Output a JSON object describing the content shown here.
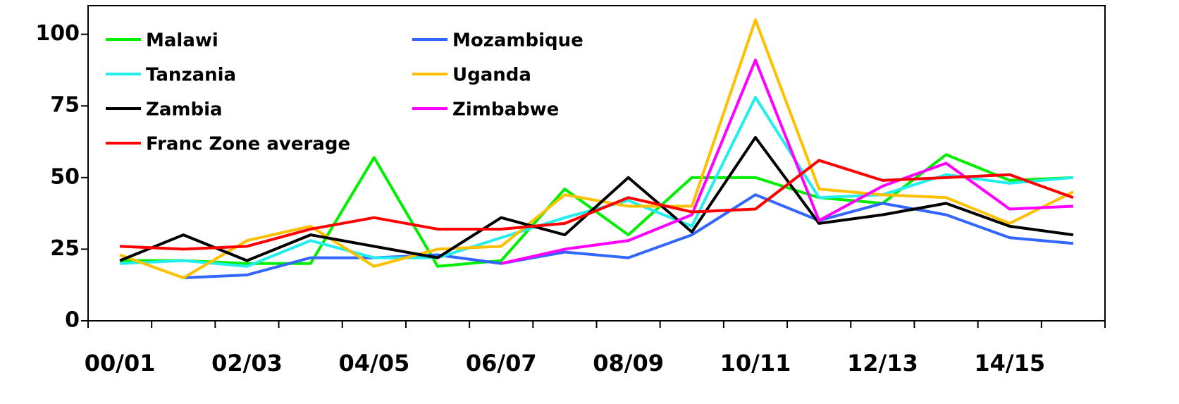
{
  "chart_data": {
    "type": "line",
    "categories": [
      "00/01",
      null,
      "02/03",
      null,
      "04/05",
      null,
      "06/07",
      null,
      "08/09",
      null,
      "10/11",
      null,
      "12/13",
      null,
      "14/15",
      null
    ],
    "series": [
      {
        "name": "Malawi",
        "color": "#00ee00",
        "values": [
          21,
          21,
          20,
          20,
          57,
          19,
          21,
          46,
          30,
          50,
          50,
          43,
          41,
          58,
          49,
          50
        ]
      },
      {
        "name": "Mozambique",
        "color": "#3366ff",
        "values": [
          null,
          15,
          16,
          22,
          22,
          23,
          20,
          24,
          22,
          30,
          44,
          35,
          41,
          37,
          29,
          27
        ]
      },
      {
        "name": "Tanzania",
        "color": "#22eeee",
        "values": [
          20,
          21,
          19,
          28,
          22,
          22,
          29,
          36,
          42,
          33,
          78,
          43,
          44,
          51,
          48,
          50
        ]
      },
      {
        "name": "Uganda",
        "color": "#ffc000",
        "values": [
          23,
          15,
          28,
          33,
          19,
          25,
          26,
          44,
          40,
          40,
          105,
          46,
          44,
          43,
          34,
          45
        ]
      },
      {
        "name": "Zambia",
        "color": "#000000",
        "values": [
          21,
          30,
          21,
          30,
          26,
          22,
          36,
          30,
          50,
          31,
          64,
          34,
          37,
          41,
          33,
          30
        ]
      },
      {
        "name": "Zimbabwe",
        "color": "#ff00ff",
        "values": [
          null,
          null,
          null,
          null,
          null,
          null,
          20,
          25,
          28,
          37,
          91,
          35,
          47,
          55,
          39,
          40
        ]
      },
      {
        "name": "Franc Zone average",
        "color": "#ff0000",
        "values": [
          26,
          25,
          26,
          32,
          36,
          32,
          32,
          34,
          43,
          38,
          39,
          56,
          49,
          50,
          51,
          43
        ]
      }
    ],
    "ylim": [
      0,
      110
    ],
    "yticks": [
      0,
      25,
      50,
      75,
      100
    ],
    "legend": "upper left"
  }
}
